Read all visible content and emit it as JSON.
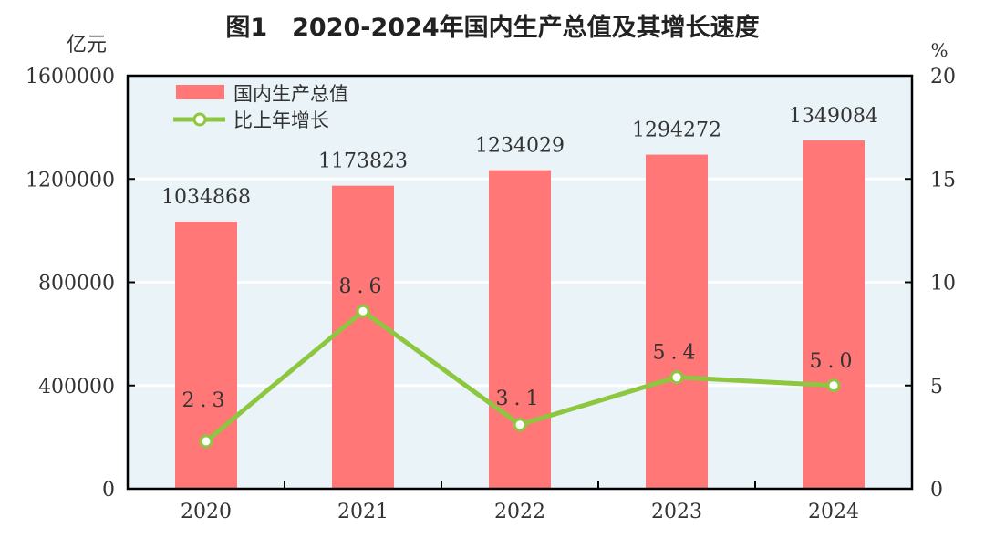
{
  "chart_data": {
    "type": "bar+line",
    "title": "图1　2020-2024年国内生产总值及其增长速度",
    "categories": [
      "2020",
      "2021",
      "2022",
      "2023",
      "2024"
    ],
    "left_axis": {
      "unit": "亿元",
      "ylim": [
        0,
        1600000
      ],
      "ticks": [
        "0",
        "400000",
        "800000",
        "1200000",
        "1600000"
      ]
    },
    "right_axis": {
      "unit": "%",
      "ylim": [
        0,
        20
      ],
      "ticks": [
        "0",
        "5",
        "10",
        "15",
        "20"
      ]
    },
    "series": [
      {
        "name": "国内生产总值",
        "type": "bar",
        "axis": "left",
        "values": [
          1034868,
          1173823,
          1234029,
          1294272,
          1349084
        ],
        "labels": [
          "1034868",
          "1173823",
          "1234029",
          "1294272",
          "1349084"
        ],
        "color": "#ff7777"
      },
      {
        "name": "比上年增长",
        "type": "line",
        "axis": "right",
        "values": [
          2.3,
          8.6,
          3.1,
          5.4,
          5.0
        ],
        "labels": [
          "2.3",
          "8.6",
          "3.1",
          "5.4",
          "5.0"
        ],
        "color": "#8dc63f"
      }
    ],
    "grid": true,
    "legend": "top-left",
    "plot_background": "#eaf4f8"
  }
}
